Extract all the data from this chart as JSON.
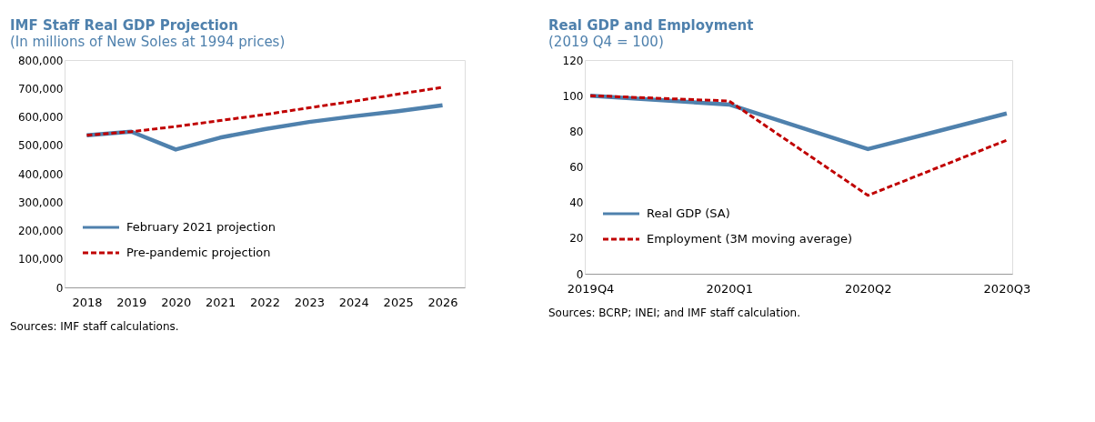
{
  "chart_data": [
    {
      "type": "line",
      "title": "IMF Staff Real GDP Projection",
      "subtitle": "(In millions of New Soles at 1994 prices)",
      "categories": [
        "2018",
        "2019",
        "2020",
        "2021",
        "2022",
        "2023",
        "2024",
        "2025",
        "2026"
      ],
      "series": [
        {
          "name": "February 2021 projection",
          "color": "#4f81ad",
          "line_style": "solid",
          "values": [
            535000,
            548000,
            485000,
            527000,
            557000,
            582000,
            602000,
            620000,
            641000
          ]
        },
        {
          "name": "Pre-pandemic projection",
          "color": "#c00000",
          "line_style": "dashed",
          "values": [
            535000,
            548000,
            566000,
            587000,
            608000,
            632000,
            655000,
            680000,
            704000
          ]
        }
      ],
      "ylim": [
        0,
        800000
      ],
      "yticks": [
        {
          "value": 0,
          "label": "0"
        },
        {
          "value": 100000,
          "label": "100,000"
        },
        {
          "value": 200000,
          "label": "200,000"
        },
        {
          "value": 300000,
          "label": "300,000"
        },
        {
          "value": 400000,
          "label": "400,000"
        },
        {
          "value": 500000,
          "label": "500,000"
        },
        {
          "value": 600000,
          "label": "600,000"
        },
        {
          "value": 700000,
          "label": "700,000"
        },
        {
          "value": 800000,
          "label": "800,000"
        }
      ],
      "grid": false,
      "legend": "bottom left",
      "marker": "none",
      "annotations": [
        "Sources: IMF staff calculations."
      ]
    },
    {
      "type": "line",
      "title": "Real GDP and Employment",
      "subtitle": "(2019 Q4 = 100)",
      "categories": [
        "2019Q4",
        "2020Q1",
        "2020Q2",
        "2020Q3"
      ],
      "series": [
        {
          "name": "Real GDP (SA)",
          "color": "#4f81ad",
          "line_style": "solid",
          "values": [
            100,
            95,
            70,
            90
          ]
        },
        {
          "name": "Employment (3M moving average)",
          "color": "#c00000",
          "line_style": "dashed",
          "values": [
            100,
            97,
            44,
            75
          ]
        }
      ],
      "ylim": [
        0,
        120
      ],
      "yticks": [
        0,
        20,
        40,
        60,
        80,
        100,
        120
      ],
      "grid": false,
      "legend": "bottom left",
      "marker": "none",
      "annotations": [
        "Sources: BCRP; INEI; and IMF staff calculation."
      ]
    }
  ]
}
